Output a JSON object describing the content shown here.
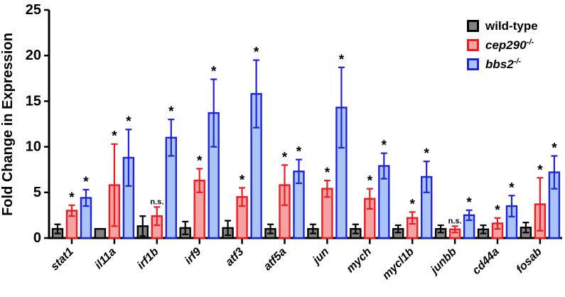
{
  "figure": {
    "background": "#ffffff"
  },
  "legend": {
    "position": "top-right",
    "items": [
      {
        "label": "wild-type",
        "sup": "",
        "fill": "#828282",
        "border": "#000000"
      },
      {
        "label": "cep290",
        "sup": "-/-",
        "fill": "#F5A2A2",
        "border": "#EC1C24"
      },
      {
        "label": "bbs2",
        "sup": "-/-",
        "fill": "#A8C5F4",
        "border": "#2222DB"
      }
    ]
  },
  "chart_data": {
    "type": "bar",
    "title": "",
    "xlabel": "",
    "ylabel": "Fold Change in Expression",
    "ylim": [
      0,
      25
    ],
    "yticks": [
      0,
      5,
      10,
      15,
      20,
      25
    ],
    "grid": false,
    "legend_position": "top-right",
    "error_bars": "SEM, symmetric, capped",
    "categories": [
      "stat1",
      "il11a",
      "irf1b",
      "irf9",
      "atf3",
      "atf5a",
      "jun",
      "mych",
      "mycl1b",
      "junbb",
      "cd44a",
      "fosab"
    ],
    "series": [
      {
        "name": "wild-type",
        "fill": "#828282",
        "stroke": "#000000",
        "values": [
          1.0,
          1.0,
          1.3,
          1.1,
          1.1,
          1.0,
          1.0,
          1.0,
          1.0,
          1.0,
          0.95,
          1.15
        ],
        "errors": [
          0.5,
          0.0,
          1.1,
          0.7,
          0.8,
          0.5,
          0.5,
          0.5,
          0.4,
          0.4,
          0.45,
          0.55
        ],
        "annotations": [
          "",
          "",
          "",
          "",
          "",
          "",
          "",
          "",
          "",
          "",
          "",
          ""
        ]
      },
      {
        "name": "cep290-/-",
        "fill": "#F5A2A2",
        "stroke": "#EC1C24",
        "values": [
          3.0,
          5.8,
          2.4,
          6.3,
          4.5,
          5.8,
          5.4,
          4.3,
          2.2,
          0.95,
          1.6,
          3.7
        ],
        "errors": [
          0.6,
          4.5,
          1.0,
          1.3,
          1.0,
          2.2,
          0.9,
          1.1,
          0.65,
          0.35,
          0.6,
          2.9
        ],
        "annotations": [
          "*",
          "*",
          "n.s.",
          "*",
          "*",
          "*",
          "*",
          "*",
          "*",
          "n.s.",
          "*",
          "*"
        ]
      },
      {
        "name": "bbs2-/-",
        "fill": "#A8C5F4",
        "stroke": "#2222DB",
        "values": [
          4.4,
          8.8,
          11.0,
          13.7,
          15.8,
          7.3,
          14.3,
          7.9,
          6.7,
          2.5,
          3.5,
          7.2
        ],
        "errors": [
          0.9,
          3.1,
          2.0,
          3.7,
          3.7,
          1.3,
          4.4,
          1.4,
          1.7,
          0.55,
          1.15,
          1.8
        ],
        "annotations": [
          "*",
          "*",
          "*",
          "*",
          "*",
          "*",
          "*",
          "*",
          "*",
          "*",
          "*",
          "*"
        ]
      }
    ]
  }
}
